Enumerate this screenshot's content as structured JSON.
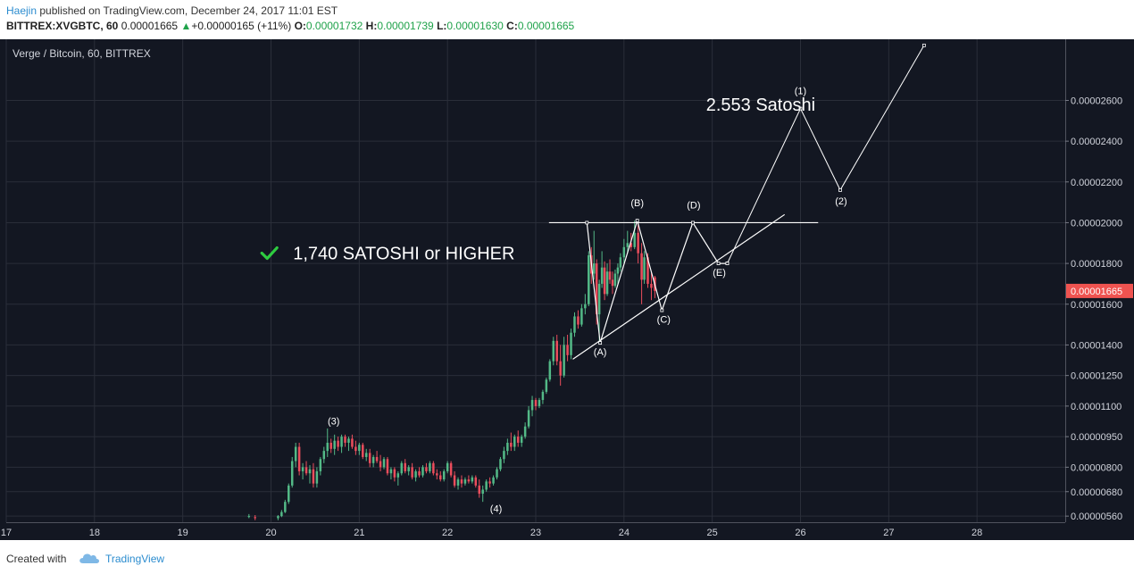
{
  "header": {
    "author": "Haejin",
    "published": "published on TradingView.com, December 24, 2017 11:01 EST",
    "symbol": "BITTREX:XVGBTC, 60",
    "price": "0.00001665",
    "change_arrow": "▲",
    "change": "+0.00000165 (+11%)",
    "o_label": "O:",
    "o_value": "0.00001732",
    "h_label": "H:",
    "h_value": "0.00001739",
    "l_label": "L:",
    "l_value": "0.00001630",
    "c_label": "C:",
    "c_value": "0.00001665"
  },
  "footer": {
    "created_with": "Created with",
    "brand": "TradingView"
  },
  "colors": {
    "background": "#131722",
    "grid": "#2a2e39",
    "up": "#53b987",
    "down": "#eb4d5c",
    "last_price": "#ef5350",
    "annotation": "#ffffff",
    "check": "#2ecc40"
  },
  "chart_data": {
    "type": "candlestick",
    "title": "Verge / Bitcoin, 60, BITTREX",
    "x_unit": "day (December 2017)",
    "xlim": [
      17,
      29
    ],
    "x_ticks": [
      "17",
      "18",
      "19",
      "20",
      "21",
      "22",
      "23",
      "24",
      "25",
      "26",
      "27",
      "28"
    ],
    "ylim": [
      5.3e-06,
      2.9e-05
    ],
    "y_ticks": [
      "0.00002600",
      "0.00002400",
      "0.00002200",
      "0.00002000",
      "0.00001800",
      "0.00001600",
      "0.00001400",
      "0.00001250",
      "0.00001100",
      "0.00000950",
      "0.00000800",
      "0.00000680",
      "0.00000560"
    ],
    "last_price": "0.00001665",
    "candles": [
      [
        19.75,
        5.6e-06,
        5.7e-06,
        5.5e-06,
        5.6e-06
      ],
      [
        19.82,
        5.55e-06,
        5.65e-06,
        5.4e-06,
        5.5e-06
      ],
      [
        20.08,
        5.5e-06,
        5.65e-06,
        5.4e-06,
        5.6e-06
      ],
      [
        20.12,
        5.6e-06,
        5.9e-06,
        5.55e-06,
        5.8e-06
      ],
      [
        20.16,
        5.8e-06,
        6.4e-06,
        5.75e-06,
        6.3e-06
      ],
      [
        20.2,
        6.3e-06,
        7.2e-06,
        6.2e-06,
        7.1e-06
      ],
      [
        20.24,
        7.1e-06,
        8.5e-06,
        7e-06,
        8.3e-06
      ],
      [
        20.28,
        8.3e-06,
        9.2e-06,
        8e-06,
        9e-06
      ],
      [
        20.32,
        9e-06,
        9.2e-06,
        7.6e-06,
        7.8e-06
      ],
      [
        20.36,
        7.8e-06,
        8.2e-06,
        7.4e-06,
        8e-06
      ],
      [
        20.4,
        8e-06,
        8.3e-06,
        7.6e-06,
        7.7e-06
      ],
      [
        20.44,
        7.7e-06,
        8.1e-06,
        7.2e-06,
        7.9e-06
      ],
      [
        20.48,
        7.9e-06,
        8.2e-06,
        7e-06,
        7.2e-06
      ],
      [
        20.52,
        7.2e-06,
        8e-06,
        7e-06,
        7.8e-06
      ],
      [
        20.56,
        7.8e-06,
        8.5e-06,
        7.6e-06,
        8.4e-06
      ],
      [
        20.6,
        8.4e-06,
        9e-06,
        8.2e-06,
        8.8e-06
      ],
      [
        20.64,
        8.8e-06,
        9.9e-06,
        8.5e-06,
        9.2e-06
      ],
      [
        20.68,
        9.2e-06,
        9.4e-06,
        8.7e-06,
        8.9e-06
      ],
      [
        20.72,
        8.9e-06,
        9.6e-06,
        8.6e-06,
        9.3e-06
      ],
      [
        20.76,
        9.3e-06,
        9.5e-06,
        8.8e-06,
        9e-06
      ],
      [
        20.8,
        9e-06,
        9.6e-06,
        8.7e-06,
        9.5e-06
      ],
      [
        20.84,
        9.5e-06,
        9.6e-06,
        9e-06,
        9.2e-06
      ],
      [
        20.88,
        9.2e-06,
        9.5e-06,
        8.8e-06,
        9.4e-06
      ],
      [
        20.92,
        9.4e-06,
        9.6e-06,
        8.9e-06,
        9e-06
      ],
      [
        20.96,
        9e-06,
        9.3e-06,
        8.6e-06,
        8.8e-06
      ],
      [
        21.0,
        8.8e-06,
        9.2e-06,
        8.6e-06,
        9.1e-06
      ],
      [
        21.04,
        9.1e-06,
        9.2e-06,
        8.4e-06,
        8.5e-06
      ],
      [
        21.08,
        8.5e-06,
        8.9e-06,
        8.3e-06,
        8.7e-06
      ],
      [
        21.12,
        8.7e-06,
        8.9e-06,
        8e-06,
        8.2e-06
      ],
      [
        21.16,
        8.2e-06,
        8.6e-06,
        8e-06,
        8.5e-06
      ],
      [
        21.2,
        8.5e-06,
        8.8e-06,
        8.2e-06,
        8.3e-06
      ],
      [
        21.24,
        8.3e-06,
        8.6e-06,
        7.8e-06,
        8e-06
      ],
      [
        21.28,
        8e-06,
        8.5e-06,
        7.9e-06,
        8.4e-06
      ],
      [
        21.32,
        8.4e-06,
        8.5e-06,
        7.6e-06,
        7.7e-06
      ],
      [
        21.36,
        7.7e-06,
        8e-06,
        7.4e-06,
        7.9e-06
      ],
      [
        21.4,
        7.9e-06,
        8e-06,
        7.3e-06,
        7.5e-06
      ],
      [
        21.44,
        7.5e-06,
        7.8e-06,
        7.1e-06,
        7.7e-06
      ],
      [
        21.48,
        7.7e-06,
        8.3e-06,
        7.6e-06,
        8.2e-06
      ],
      [
        21.52,
        8.2e-06,
        8.4e-06,
        7.7e-06,
        7.8e-06
      ],
      [
        21.56,
        7.8e-06,
        8.1e-06,
        7.6e-06,
        8e-06
      ],
      [
        21.6,
        8e-06,
        8.2e-06,
        7.4e-06,
        7.5e-06
      ],
      [
        21.64,
        7.5e-06,
        7.9e-06,
        7.3e-06,
        7.8e-06
      ],
      [
        21.68,
        7.8e-06,
        8e-06,
        7.5e-06,
        7.6e-06
      ],
      [
        21.72,
        7.6e-06,
        8.1e-06,
        7.5e-06,
        8e-06
      ],
      [
        21.76,
        8e-06,
        8.2e-06,
        7.7e-06,
        7.8e-06
      ],
      [
        21.8,
        7.8e-06,
        8.3e-06,
        7.7e-06,
        8.2e-06
      ],
      [
        21.84,
        8.2e-06,
        8.3e-06,
        7.6e-06,
        7.7e-06
      ],
      [
        21.88,
        7.7e-06,
        7.9e-06,
        7.4e-06,
        7.6e-06
      ],
      [
        21.92,
        7.6e-06,
        7.8e-06,
        7.3e-06,
        7.4e-06
      ],
      [
        21.96,
        7.4e-06,
        7.9e-06,
        7.3e-06,
        7.8e-06
      ],
      [
        22.0,
        7.8e-06,
        8.3e-06,
        7.7e-06,
        8.2e-06
      ],
      [
        22.04,
        8.2e-06,
        8.3e-06,
        7.5e-06,
        7.6e-06
      ],
      [
        22.08,
        7.6e-06,
        7.8e-06,
        7e-06,
        7.1e-06
      ],
      [
        22.12,
        7.1e-06,
        7.5e-06,
        6.9e-06,
        7.4e-06
      ],
      [
        22.16,
        7.4e-06,
        7.6e-06,
        7e-06,
        7.2e-06
      ],
      [
        22.2,
        7.2e-06,
        7.5e-06,
        7.1e-06,
        7.4e-06
      ],
      [
        22.24,
        7.4e-06,
        7.6e-06,
        7.2e-06,
        7.3e-06
      ],
      [
        22.28,
        7.3e-06,
        7.6e-06,
        7.2e-06,
        7.5e-06
      ],
      [
        22.32,
        7.5e-06,
        7.6e-06,
        7e-06,
        7.1e-06
      ],
      [
        22.36,
        7.1e-06,
        7.4e-06,
        6.5e-06,
        6.7e-06
      ],
      [
        22.4,
        6.7e-06,
        7.1e-06,
        6.3e-06,
        6.9e-06
      ],
      [
        22.44,
        6.9e-06,
        7.4e-06,
        6.8e-06,
        7.3e-06
      ],
      [
        22.48,
        7.3e-06,
        7.5e-06,
        7e-06,
        7.2e-06
      ],
      [
        22.52,
        7.2e-06,
        7.6e-06,
        7.1e-06,
        7.5e-06
      ],
      [
        22.56,
        7.5e-06,
        8e-06,
        7.4e-06,
        7.9e-06
      ],
      [
        22.6,
        7.9e-06,
        8.5e-06,
        7.8e-06,
        8.4e-06
      ],
      [
        22.64,
        8.4e-06,
        9e-06,
        8.2e-06,
        8.8e-06
      ],
      [
        22.68,
        8.8e-06,
        9.4e-06,
        8.6e-06,
        9.2e-06
      ],
      [
        22.72,
        9.2e-06,
        9.7e-06,
        8.8e-06,
        9e-06
      ],
      [
        22.76,
        9e-06,
        9.6e-06,
        8.8e-06,
        9.5e-06
      ],
      [
        22.8,
        9.5e-06,
        9.8e-06,
        9e-06,
        9.2e-06
      ],
      [
        22.84,
        9.2e-06,
        9.6e-06,
        9e-06,
        9.5e-06
      ],
      [
        22.88,
        9.5e-06,
        1.02e-05,
        9.4e-06,
        1e-05
      ],
      [
        22.92,
        1e-05,
        1.1e-05,
        9.9e-06,
        1.08e-05
      ],
      [
        22.96,
        1.08e-05,
        1.15e-05,
        1.05e-05,
        1.13e-05
      ],
      [
        23.0,
        1.13e-05,
        1.14e-05,
        1.08e-05,
        1.1e-05
      ],
      [
        23.04,
        1.1e-05,
        1.14e-05,
        1.09e-05,
        1.13e-05
      ],
      [
        23.08,
        1.13e-05,
        1.18e-05,
        1.11e-05,
        1.17e-05
      ],
      [
        23.12,
        1.17e-05,
        1.24e-05,
        1.16e-05,
        1.23e-05
      ],
      [
        23.16,
        1.23e-05,
        1.33e-05,
        1.22e-05,
        1.32e-05
      ],
      [
        23.2,
        1.32e-05,
        1.44e-05,
        1.3e-05,
        1.42e-05
      ],
      [
        23.24,
        1.42e-05,
        1.45e-05,
        1.3e-05,
        1.32e-05
      ],
      [
        23.28,
        1.32e-05,
        1.4e-05,
        1.2e-05,
        1.25e-05
      ],
      [
        23.32,
        1.25e-05,
        1.44e-05,
        1.24e-05,
        1.4e-05
      ],
      [
        23.36,
        1.4e-05,
        1.45e-05,
        1.32e-05,
        1.35e-05
      ],
      [
        23.4,
        1.35e-05,
        1.48e-05,
        1.33e-05,
        1.46e-05
      ],
      [
        23.44,
        1.46e-05,
        1.56e-05,
        1.44e-05,
        1.54e-05
      ],
      [
        23.48,
        1.54e-05,
        1.57e-05,
        1.48e-05,
        1.5e-05
      ],
      [
        23.52,
        1.5e-05,
        1.6e-05,
        1.49e-05,
        1.58e-05
      ],
      [
        23.56,
        1.58e-05,
        1.65e-05,
        1.55e-05,
        1.6e-05
      ],
      [
        23.6,
        1.6e-05,
        1.86e-05,
        1.59e-05,
        1.84e-05
      ],
      [
        23.63,
        1.84e-05,
        1.88e-05,
        1.7e-05,
        1.75e-05
      ],
      [
        23.66,
        1.75e-05,
        1.96e-05,
        1.72e-05,
        1.8e-05
      ],
      [
        23.69,
        1.8e-05,
        1.82e-05,
        1.5e-05,
        1.55e-05
      ],
      [
        23.72,
        1.55e-05,
        1.72e-05,
        1.42e-05,
        1.7e-05
      ],
      [
        23.75,
        1.7e-05,
        1.86e-05,
        1.68e-05,
        1.78e-05
      ],
      [
        23.78,
        1.78e-05,
        1.81e-05,
        1.62e-05,
        1.65e-05
      ],
      [
        23.81,
        1.65e-05,
        1.8e-05,
        1.64e-05,
        1.76e-05
      ],
      [
        23.84,
        1.76e-05,
        1.82e-05,
        1.7e-05,
        1.72e-05
      ],
      [
        23.87,
        1.72e-05,
        1.76e-05,
        1.65e-05,
        1.69e-05
      ],
      [
        23.9,
        1.69e-05,
        1.77e-05,
        1.68e-05,
        1.75e-05
      ],
      [
        23.93,
        1.75e-05,
        1.8e-05,
        1.7e-05,
        1.78e-05
      ],
      [
        23.96,
        1.78e-05,
        1.85e-05,
        1.76e-05,
        1.83e-05
      ],
      [
        24.0,
        1.83e-05,
        1.92e-05,
        1.8e-05,
        1.88e-05
      ],
      [
        24.04,
        1.88e-05,
        1.96e-05,
        1.85e-05,
        1.9e-05
      ],
      [
        24.08,
        1.9e-05,
        1.95e-05,
        1.86e-05,
        1.88e-05
      ],
      [
        24.12,
        1.88e-05,
        2.01e-05,
        1.87e-05,
        1.95e-05
      ],
      [
        24.16,
        1.95e-05,
        2e-05,
        1.8e-05,
        1.85e-05
      ],
      [
        24.2,
        1.85e-05,
        1.9e-05,
        1.6e-05,
        1.72e-05
      ],
      [
        24.23,
        1.72e-05,
        1.86e-05,
        1.7e-05,
        1.83e-05
      ],
      [
        24.27,
        1.83e-05,
        1.85e-05,
        1.68e-05,
        1.7e-05
      ],
      [
        24.31,
        1.7e-05,
        1.76e-05,
        1.62e-05,
        1.68e-05
      ],
      [
        24.35,
        1.732e-05,
        1.739e-05,
        1.63e-05,
        1.665e-05
      ]
    ],
    "elliott_wave": {
      "past_points": [
        [
          23.58,
          2e-05
        ],
        [
          23.73,
          1.41e-05
        ],
        [
          24.15,
          2.01e-05
        ],
        [
          24.43,
          1.57e-05
        ],
        [
          24.78,
          2e-05
        ],
        [
          25.07,
          1.8e-05
        ],
        [
          25.17,
          1.8e-05
        ]
      ],
      "projection_points": [
        [
          25.17,
          1.8e-05
        ],
        [
          26.0,
          2.56e-05
        ],
        [
          26.45,
          2.16e-05
        ],
        [
          27.4,
          2.87e-05
        ]
      ],
      "triangle_top": [
        [
          23.15,
          2e-05
        ],
        [
          26.2,
          2e-05
        ]
      ],
      "triangle_bottom": [
        [
          23.42,
          1.33e-05
        ],
        [
          25.82,
          2.04e-05
        ]
      ]
    },
    "wave_labels": [
      {
        "text": "(1)",
        "x": 26.0,
        "y": 2.63e-05
      },
      {
        "text": "(2)",
        "x": 26.46,
        "y": 2.09e-05
      },
      {
        "text": "(3)",
        "x": 20.71,
        "y": 1.01e-05
      },
      {
        "text": "(4)",
        "x": 22.55,
        "y": 5.8e-06
      },
      {
        "text": "(A)",
        "x": 23.73,
        "y": 1.35e-05
      },
      {
        "text": "(B)",
        "x": 24.15,
        "y": 2.08e-05
      },
      {
        "text": "(C)",
        "x": 24.45,
        "y": 1.51e-05
      },
      {
        "text": "(D)",
        "x": 24.79,
        "y": 2.07e-05
      },
      {
        "text": "(E)",
        "x": 25.08,
        "y": 1.74e-05
      }
    ],
    "annotations": [
      {
        "text": "2.553 Satoshi",
        "x": 24.93,
        "y": 2.55e-05
      },
      {
        "text": "1,740 SATOSHI or HIGHER",
        "x": 20.25,
        "y": 1.82e-05
      }
    ]
  }
}
